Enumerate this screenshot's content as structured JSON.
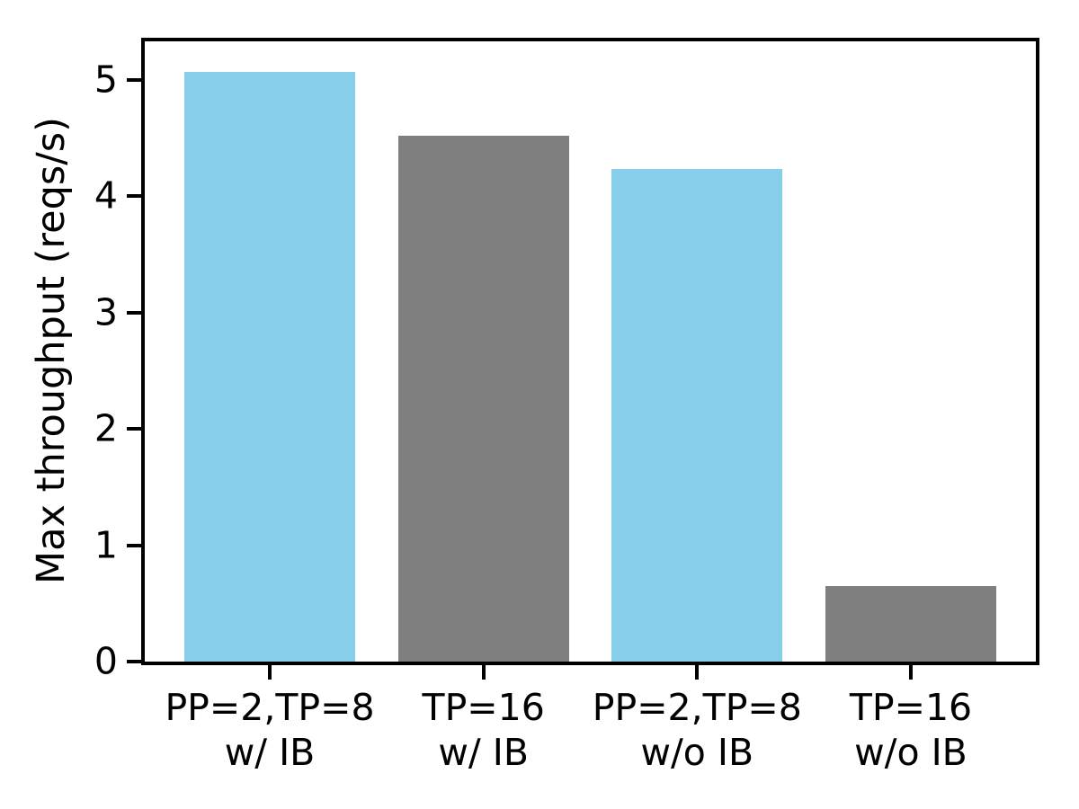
{
  "chart_data": {
    "type": "bar",
    "title": "",
    "xlabel": "",
    "ylabel": "Max throughput (reqs/s)",
    "categories": [
      "PP=2,TP=8\nw/ IB",
      "TP=16\nw/ IB",
      "PP=2,TP=8\nw/o IB",
      "TP=16\nw/o IB"
    ],
    "values": [
      5.07,
      4.52,
      4.23,
      0.65
    ],
    "bar_colors": [
      "#87ceeb",
      "#7f7f7f",
      "#87ceeb",
      "#7f7f7f"
    ],
    "yticks": [
      0,
      1,
      2,
      3,
      4,
      5
    ],
    "ylim": [
      0,
      5.33
    ],
    "xlim": [
      -0.585,
      3.585
    ],
    "bar_width_fraction": 0.8,
    "grid": "off",
    "legend": "none",
    "axis_color": "#000000",
    "background_color": "#ffffff"
  }
}
